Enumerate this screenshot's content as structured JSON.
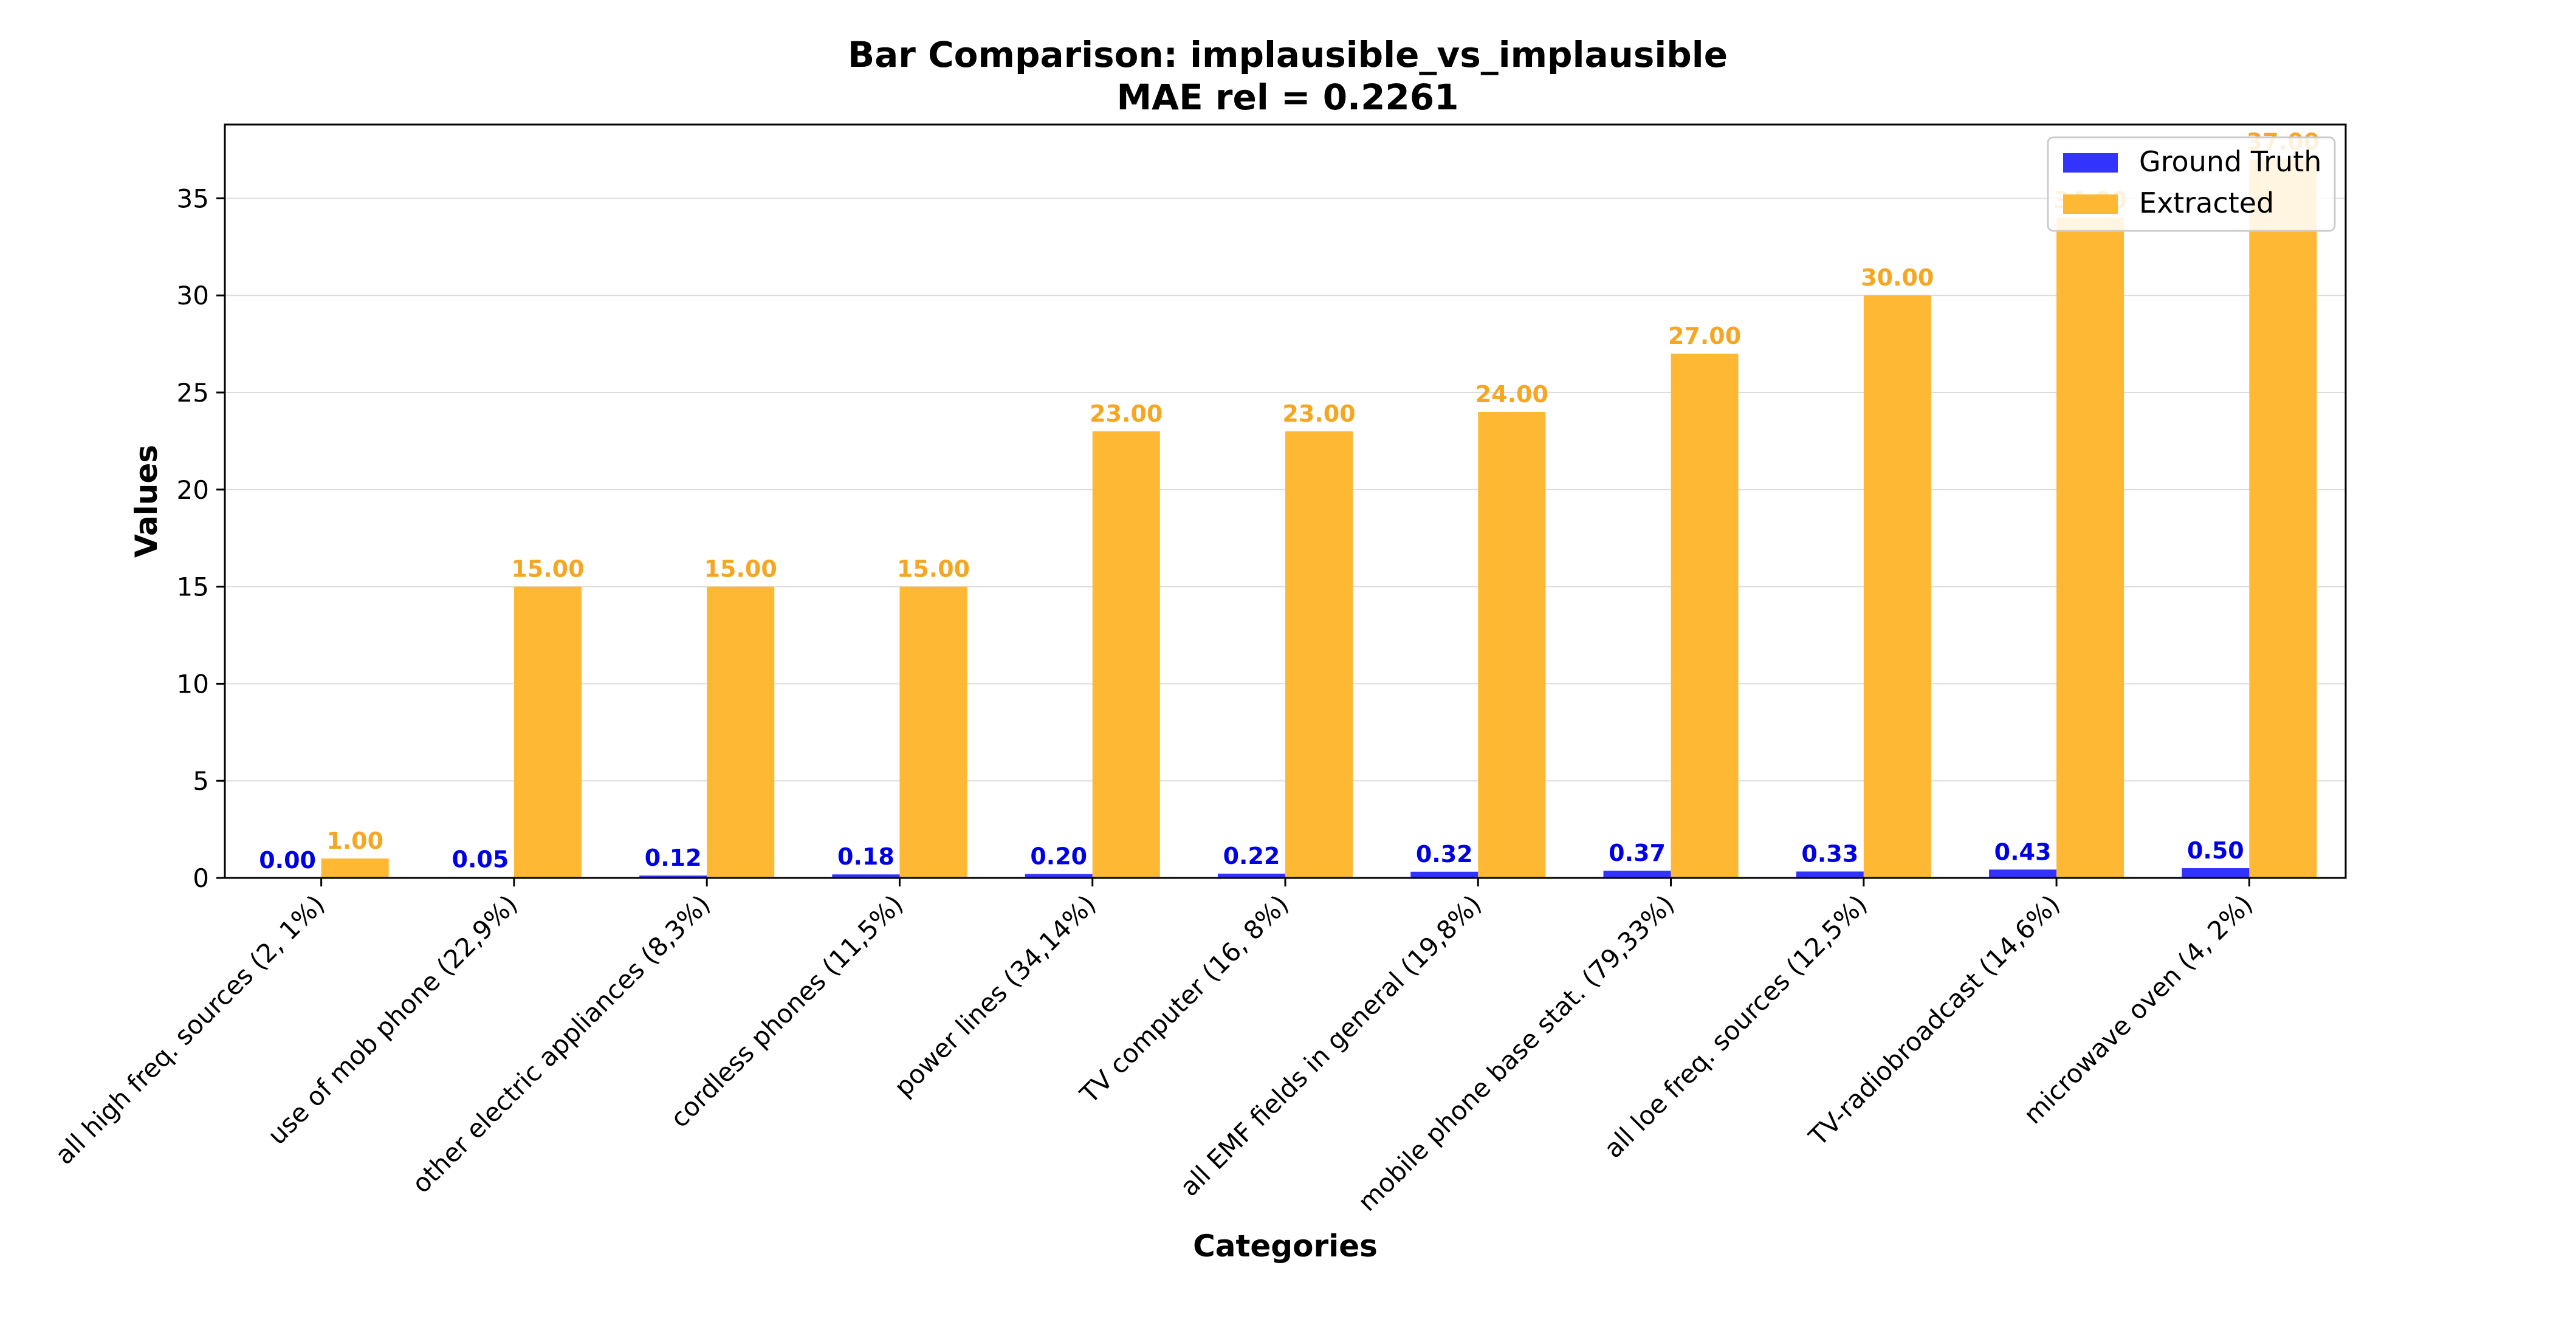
{
  "chart_data": {
    "type": "bar",
    "title": "Bar Comparison: implausible_vs_implausible",
    "subtitle": "MAE rel = 0.2261",
    "xlabel": "Categories",
    "ylabel": "Values",
    "ylim": [
      0,
      38.8
    ],
    "yticks": [
      0,
      5,
      10,
      15,
      20,
      25,
      30,
      35
    ],
    "grid": "horizontal",
    "legend_position": "top-right",
    "categories": [
      "all high freq. sources (2, 1%)",
      "use of mob phone (22,9%)",
      "other electric appliances (8,3%)",
      "cordless phones (11,5%)",
      "power lines (34,14%)",
      "TV computer (16, 8%)",
      "all EMF fields in general (19,8%)",
      "mobile phone base stat. (79,33%)",
      "all loe freq. sources (12,5%)",
      "TV-radiobroadcast (14,6%)",
      "microwave oven (4, 2%)"
    ],
    "series": [
      {
        "name": "Ground Truth",
        "color": "#3333ff",
        "label_color": "#0000e6",
        "values": [
          0.0,
          0.05,
          0.12,
          0.18,
          0.2,
          0.22,
          0.32,
          0.37,
          0.33,
          0.43,
          0.5
        ],
        "labels": [
          "0.00",
          "0.05",
          "0.12",
          "0.18",
          "0.20",
          "0.22",
          "0.32",
          "0.37",
          "0.33",
          "0.43",
          "0.50"
        ]
      },
      {
        "name": "Extracted",
        "color": "#ffb833",
        "label_color": "#f5a623",
        "values": [
          1.0,
          15.0,
          15.0,
          15.0,
          23.0,
          23.0,
          24.0,
          27.0,
          30.0,
          34.0,
          37.0
        ],
        "labels": [
          "1.00",
          "15.00",
          "15.00",
          "15.00",
          "23.00",
          "23.00",
          "24.00",
          "27.00",
          "30.00",
          "34.00",
          "37.00"
        ]
      }
    ]
  }
}
